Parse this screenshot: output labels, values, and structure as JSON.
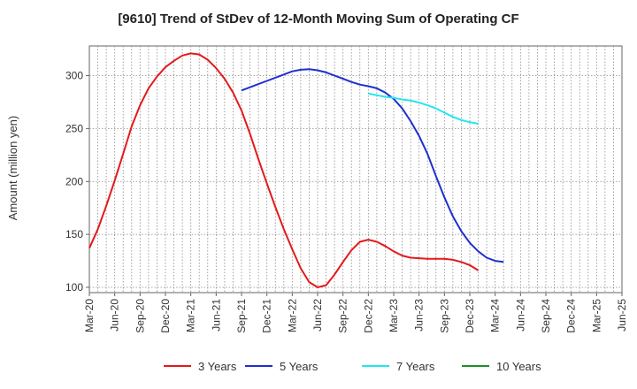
{
  "chart_data": {
    "type": "line",
    "title": "[9610]  Trend of StDev of 12-Month Moving Sum of Operating CF",
    "ylabel": "Amount (million yen)",
    "xlabel": "",
    "ylim": [
      95,
      328
    ],
    "yticks": [
      100,
      150,
      200,
      250,
      300
    ],
    "xticks": [
      "Mar-20",
      "Jun-20",
      "Sep-20",
      "Dec-20",
      "Mar-21",
      "Jun-21",
      "Sep-21",
      "Dec-21",
      "Mar-22",
      "Jun-22",
      "Sep-22",
      "Dec-22",
      "Mar-23",
      "Jun-23",
      "Sep-23",
      "Dec-23",
      "Mar-24",
      "Jun-24",
      "Sep-24",
      "Dec-24",
      "Mar-25",
      "Jun-25"
    ],
    "grid": true,
    "legend_position": "bottom",
    "series": [
      {
        "name": "3 Years",
        "color": "#e31a1c",
        "values": [
          [
            0,
            137
          ],
          [
            1,
            155
          ],
          [
            2,
            177
          ],
          [
            3,
            201
          ],
          [
            4,
            226
          ],
          [
            5,
            252
          ],
          [
            6,
            272
          ],
          [
            7,
            288
          ],
          [
            8,
            299
          ],
          [
            9,
            308
          ],
          [
            10,
            314
          ],
          [
            11,
            319
          ],
          [
            12,
            321
          ],
          [
            13,
            320
          ],
          [
            14,
            315
          ],
          [
            15,
            307
          ],
          [
            16,
            297
          ],
          [
            17,
            284
          ],
          [
            18,
            267
          ],
          [
            19,
            245
          ],
          [
            20,
            221
          ],
          [
            21,
            198
          ],
          [
            22,
            176
          ],
          [
            23,
            155
          ],
          [
            24,
            136
          ],
          [
            25,
            118
          ],
          [
            26,
            105
          ],
          [
            27,
            100
          ],
          [
            28,
            102
          ],
          [
            29,
            112
          ],
          [
            30,
            124
          ],
          [
            31,
            135
          ],
          [
            32,
            143
          ],
          [
            33,
            145
          ],
          [
            34,
            143
          ],
          [
            35,
            139
          ],
          [
            36,
            134
          ],
          [
            37,
            130
          ],
          [
            38,
            128
          ],
          [
            39,
            127.5
          ],
          [
            40,
            127
          ],
          [
            41,
            127
          ],
          [
            42,
            127
          ],
          [
            43,
            126
          ],
          [
            44,
            124
          ],
          [
            45,
            121
          ],
          [
            46,
            116
          ]
        ]
      },
      {
        "name": "5 Years",
        "color": "#1f2fd0",
        "values": [
          [
            18,
            286
          ],
          [
            19,
            289
          ],
          [
            20,
            292
          ],
          [
            21,
            295
          ],
          [
            22,
            298
          ],
          [
            23,
            301
          ],
          [
            24,
            304
          ],
          [
            25,
            305.5
          ],
          [
            26,
            306
          ],
          [
            27,
            305
          ],
          [
            28,
            303
          ],
          [
            29,
            300
          ],
          [
            30,
            297
          ],
          [
            31,
            294
          ],
          [
            32,
            291.5
          ],
          [
            33,
            290
          ],
          [
            34,
            288
          ],
          [
            35,
            284
          ],
          [
            36,
            278
          ],
          [
            37,
            269
          ],
          [
            38,
            257
          ],
          [
            39,
            243
          ],
          [
            40,
            226
          ],
          [
            41,
            205
          ],
          [
            42,
            185
          ],
          [
            43,
            167
          ],
          [
            44,
            153
          ],
          [
            45,
            142
          ],
          [
            46,
            134
          ],
          [
            47,
            128
          ],
          [
            48,
            125
          ],
          [
            49,
            124
          ]
        ]
      },
      {
        "name": "7 Years",
        "color": "#22e5f0",
        "values": [
          [
            33,
            283
          ],
          [
            34,
            281.5
          ],
          [
            35,
            280
          ],
          [
            36,
            279
          ],
          [
            37,
            277.5
          ],
          [
            38,
            276.5
          ],
          [
            39,
            274.5
          ],
          [
            40,
            272
          ],
          [
            41,
            269
          ],
          [
            42,
            265
          ],
          [
            43,
            261
          ],
          [
            44,
            258
          ],
          [
            45,
            256
          ],
          [
            46,
            254.5
          ]
        ]
      },
      {
        "name": "10 Years",
        "color": "#1e8f2a",
        "values": []
      }
    ]
  }
}
